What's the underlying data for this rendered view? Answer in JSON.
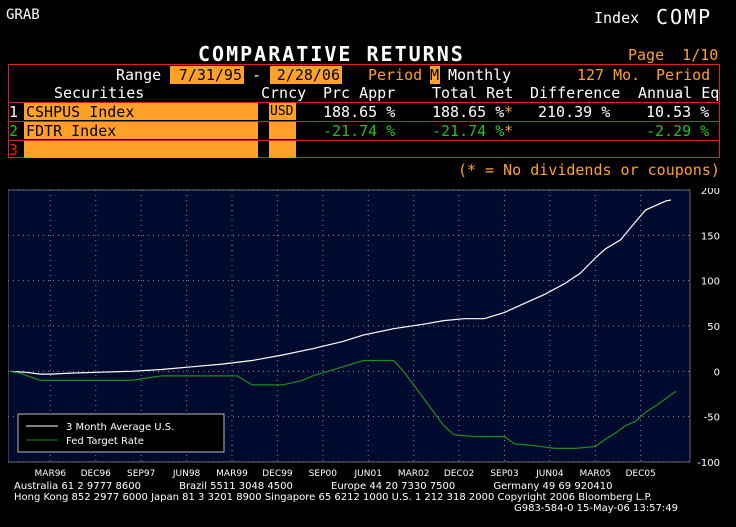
{
  "header": {
    "left": "GRAB",
    "index_label": "Index",
    "ticker": "COMP"
  },
  "title": "COMPARATIVE RETURNS",
  "page": "Page  1/10",
  "range": {
    "label": "Range",
    "start": "7/31/95",
    "dash": "-",
    "end": "2/28/06",
    "period_label": "Period",
    "period_code": "M",
    "period_value": "Monthly",
    "months": "127 Mo.",
    "period_label2": "Period"
  },
  "columns": {
    "securities": "Securities",
    "currency": "Crncy",
    "price_appr": "Prc Appr",
    "total_ret": "Total Ret",
    "difference": "Difference",
    "annual": "Annual Eq"
  },
  "rows": [
    {
      "num": "1",
      "name": "CSHPUS Index",
      "currency": "USD",
      "price_appr": "188.65 %",
      "total_ret": "188.65 %",
      "star": "*",
      "difference": "210.39 %",
      "annual": "10.53 %"
    },
    {
      "num": "2",
      "name": "FDTR Index",
      "currency": "",
      "price_appr": "-21.74 %",
      "total_ret": "-21.74 %",
      "star": "*",
      "difference": "",
      "annual": "-2.29 %"
    },
    {
      "num": "3",
      "name": "",
      "currency": "",
      "price_appr": "",
      "total_ret": "",
      "star": "",
      "difference": "",
      "annual": ""
    }
  ],
  "note": "(* = No dividends or coupons)",
  "chart_data": {
    "type": "line",
    "x_tick_labels": [
      "MAR96",
      "DEC96",
      "SEP97",
      "JUN98",
      "MAR99",
      "DEC99",
      "SEP00",
      "JUN01",
      "MAR02",
      "DEC02",
      "SEP03",
      "JUN04",
      "MAR05",
      "DEC05"
    ],
    "y_ticks": [
      200,
      150,
      100,
      50,
      0,
      -50,
      -100
    ],
    "ylim": [
      -100,
      200
    ],
    "x_range_months": [
      0,
      127
    ],
    "grid": true,
    "legend_position": "bottom-left",
    "series": [
      {
        "name": "3 Month Average U.S.",
        "color": "#ffffff",
        "points": [
          [
            0,
            0
          ],
          [
            3,
            -1
          ],
          [
            6,
            -3
          ],
          [
            8,
            -3
          ],
          [
            12,
            -2
          ],
          [
            18,
            -1
          ],
          [
            24,
            0
          ],
          [
            30,
            2
          ],
          [
            36,
            5
          ],
          [
            42,
            8
          ],
          [
            48,
            12
          ],
          [
            54,
            18
          ],
          [
            60,
            25
          ],
          [
            66,
            33
          ],
          [
            70,
            40
          ],
          [
            76,
            47
          ],
          [
            82,
            52
          ],
          [
            86,
            56
          ],
          [
            90,
            58
          ],
          [
            94,
            58
          ],
          [
            98,
            65
          ],
          [
            102,
            75
          ],
          [
            106,
            85
          ],
          [
            110,
            97
          ],
          [
            113,
            108
          ],
          [
            116,
            125
          ],
          [
            118,
            135
          ],
          [
            121,
            145
          ],
          [
            124,
            165
          ],
          [
            126,
            178
          ],
          [
            130,
            188
          ],
          [
            131,
            189
          ]
        ]
      },
      {
        "name": "Fed Target Rate",
        "color": "#1f8a1f",
        "points": [
          [
            0,
            0
          ],
          [
            2,
            -2
          ],
          [
            4,
            -6
          ],
          [
            6,
            -10
          ],
          [
            24,
            -10
          ],
          [
            30,
            -5
          ],
          [
            36,
            -5
          ],
          [
            45,
            -5
          ],
          [
            48,
            -15
          ],
          [
            54,
            -15
          ],
          [
            58,
            -10
          ],
          [
            60,
            -5
          ],
          [
            63,
            0
          ],
          [
            66,
            5
          ],
          [
            70,
            12
          ],
          [
            76,
            12
          ],
          [
            78,
            0
          ],
          [
            80,
            -15
          ],
          [
            82,
            -30
          ],
          [
            84,
            -45
          ],
          [
            86,
            -60
          ],
          [
            88,
            -70
          ],
          [
            92,
            -72
          ],
          [
            98,
            -72
          ],
          [
            100,
            -80
          ],
          [
            104,
            -82
          ],
          [
            108,
            -85
          ],
          [
            112,
            -85
          ],
          [
            116,
            -83
          ],
          [
            118,
            -75
          ],
          [
            120,
            -68
          ],
          [
            122,
            -60
          ],
          [
            124,
            -55
          ],
          [
            126,
            -45
          ],
          [
            128,
            -38
          ],
          [
            130,
            -30
          ],
          [
            132,
            -22
          ]
        ]
      }
    ]
  },
  "footer": {
    "line1": "Australia 61 2 9777 8600            Brazil 5511 3048 4500            Europe 44 20 7330 7500            Germany 49 69 920410",
    "line2": "Hong Kong 852 2977 6000 Japan 81 3 3201 8900 Singapore 65 6212 1000 U.S. 1 212 318 2000 Copyright 2006 Bloomberg L.P.",
    "line3": "G983-584-0 15-May-06 13:57:49"
  }
}
